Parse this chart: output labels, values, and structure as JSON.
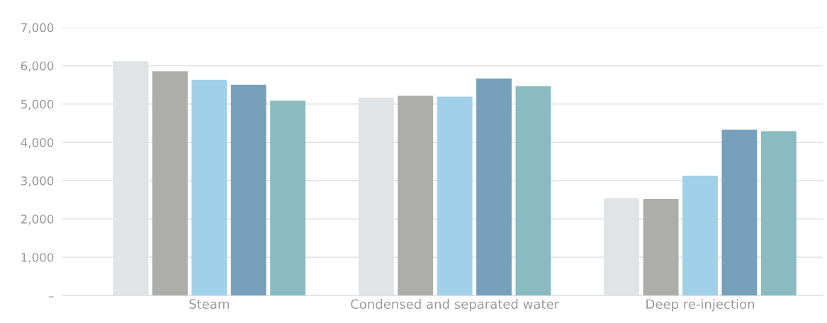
{
  "chart_data": {
    "type": "bar",
    "categories": [
      "Steam",
      "Condensed and separated water",
      "Deep re-injection"
    ],
    "series": [
      {
        "color": "#e1e4e7",
        "values": [
          6120,
          5170,
          2540
        ]
      },
      {
        "color": "#adadaa",
        "values": [
          5860,
          5220,
          2520
        ]
      },
      {
        "color": "#a0d1e8",
        "values": [
          5630,
          5190,
          3130
        ]
      },
      {
        "color": "#77a1ba",
        "values": [
          5500,
          5670,
          4330
        ]
      },
      {
        "color": "#8abbc0",
        "values": [
          5090,
          5470,
          4290
        ]
      }
    ],
    "ylim": [
      0,
      7000
    ],
    "yticks": [
      {
        "value": 0,
        "label": "–"
      },
      {
        "value": 1000,
        "label": "1,000"
      },
      {
        "value": 2000,
        "label": "2,000"
      },
      {
        "value": 3000,
        "label": "3,000"
      },
      {
        "value": 4000,
        "label": "4,000"
      },
      {
        "value": 5000,
        "label": "5,000"
      },
      {
        "value": 6000,
        "label": "6,000"
      },
      {
        "value": 7000,
        "label": "7,000"
      }
    ],
    "grid": "y"
  }
}
